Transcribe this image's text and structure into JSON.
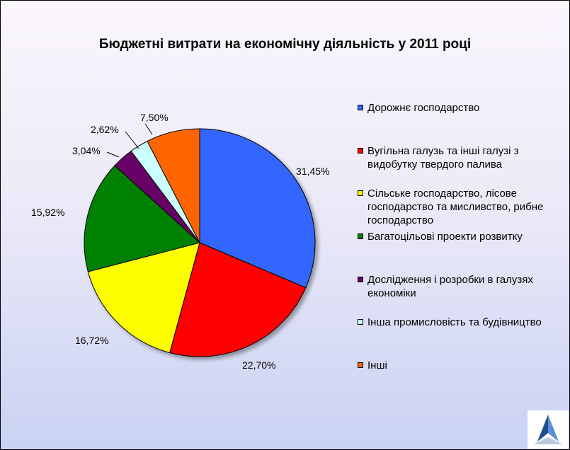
{
  "chart_data": {
    "type": "pie",
    "title": "Бюджетні витрати на економічну діяльність у 2011 році",
    "legend_position": "right",
    "slices": [
      {
        "label": "Дорожнє господарство",
        "value": 31.45,
        "value_label": "31,45%",
        "color": "#3366ff"
      },
      {
        "label": "Вугільна галузь та інші галузі з видобутку твердого палива",
        "value": 22.7,
        "value_label": "22,70%",
        "color": "#ff0000"
      },
      {
        "label": "Сільське господарство, лісове господарство та мисливство, рибне господарство",
        "value": 16.72,
        "value_label": "16,72%",
        "color": "#ffff00"
      },
      {
        "label": "Багатоцільові проекти розвитку",
        "value": 15.92,
        "value_label": "15,92%",
        "color": "#008000"
      },
      {
        "label": "Дослідження і розробки в галузях економіки",
        "value": 3.04,
        "value_label": "3,04%",
        "color": "#660066"
      },
      {
        "label": "Інша промисловість та будівництво",
        "value": 2.62,
        "value_label": "2,62%",
        "color": "#ccffff"
      },
      {
        "label": "Інші",
        "value": 7.5,
        "value_label": "7,50%",
        "color": "#ff6600"
      }
    ]
  }
}
